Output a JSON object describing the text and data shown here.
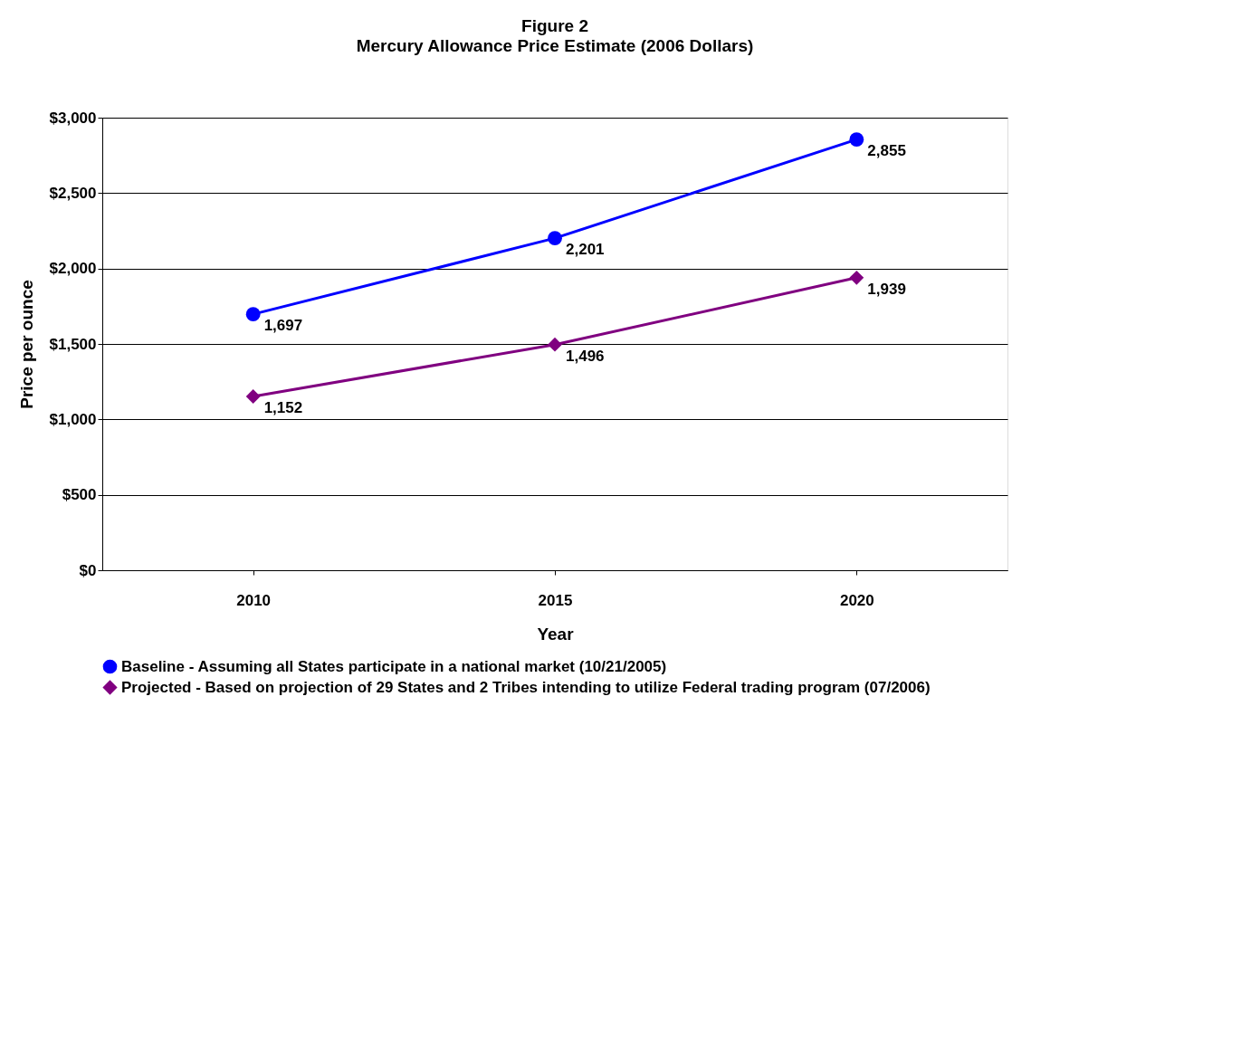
{
  "chart_data": {
    "type": "line",
    "title": "Figure 2",
    "subtitle": "Mercury Allowance Price Estimate (2006 Dollars)",
    "xlabel": "Year",
    "ylabel": "Price per ounce",
    "categories": [
      "2010",
      "2015",
      "2020"
    ],
    "series": [
      {
        "name": "Baseline - Assuming all States participate in a national market (10/21/2005)",
        "color": "#0000ff",
        "marker": "circle",
        "values": [
          1697,
          2201,
          2855
        ],
        "value_labels": [
          "1,697",
          "2,201",
          "2,855"
        ]
      },
      {
        "name": "Projected - Based on projection of 29 States and 2 Tribes intending to utilize Federal trading program (07/2006)",
        "color": "#800080",
        "marker": "diamond",
        "values": [
          1152,
          1496,
          1939
        ],
        "value_labels": [
          "1,152",
          "1,496",
          "1,939"
        ]
      }
    ],
    "ylim": [
      0,
      3000
    ],
    "yticks": [
      {
        "value": 0,
        "label": "$0"
      },
      {
        "value": 500,
        "label": "$500"
      },
      {
        "value": 1000,
        "label": "$1,000"
      },
      {
        "value": 1500,
        "label": "$1,500"
      },
      {
        "value": 2000,
        "label": "$2,000"
      },
      {
        "value": 2500,
        "label": "$2,500"
      },
      {
        "value": 3000,
        "label": "$3,000"
      }
    ],
    "grid": "y",
    "legend": "bottom"
  }
}
